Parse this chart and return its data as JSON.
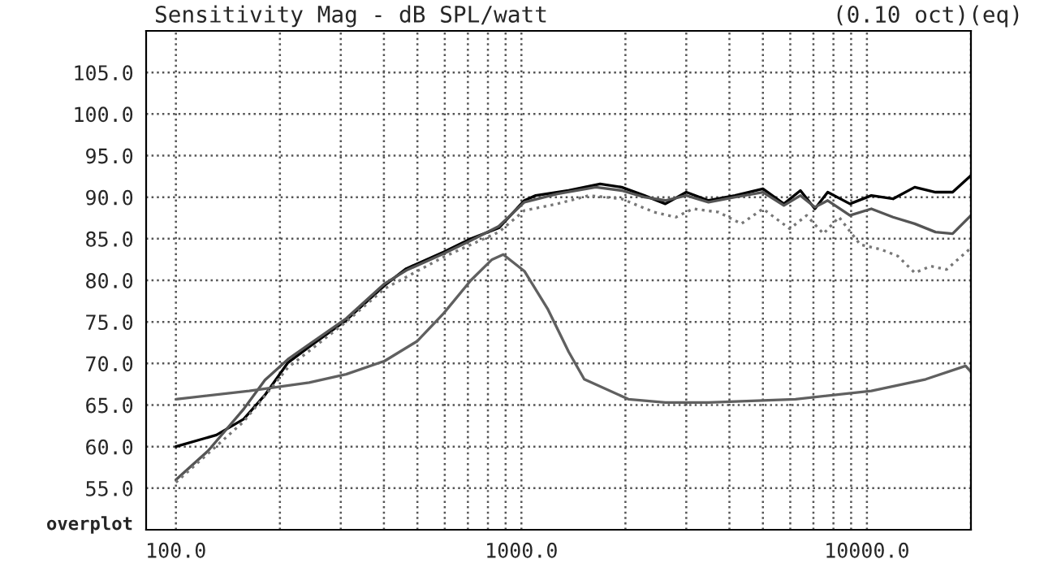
{
  "chart_data": {
    "type": "line",
    "title": "Sensitivity Mag - dB SPL/watt",
    "subtitle": "(0.10 oct)(eq)",
    "annotations": [
      "overplot"
    ],
    "log": "x",
    "grid": true,
    "legend": false,
    "marker": "none",
    "xlim": [
      82,
      20000
    ],
    "ylim": [
      50,
      110
    ],
    "xticks": [
      {
        "value": 100,
        "label": "100.0"
      },
      {
        "value": 200,
        "label": null
      },
      {
        "value": 300,
        "label": null
      },
      {
        "value": 400,
        "label": null
      },
      {
        "value": 500,
        "label": null
      },
      {
        "value": 600,
        "label": null
      },
      {
        "value": 700,
        "label": null
      },
      {
        "value": 800,
        "label": null
      },
      {
        "value": 900,
        "label": null
      },
      {
        "value": 1000,
        "label": "1000.0"
      },
      {
        "value": 2000,
        "label": null
      },
      {
        "value": 3000,
        "label": null
      },
      {
        "value": 4000,
        "label": null
      },
      {
        "value": 5000,
        "label": null
      },
      {
        "value": 6000,
        "label": null
      },
      {
        "value": 7000,
        "label": null
      },
      {
        "value": 8000,
        "label": null
      },
      {
        "value": 9000,
        "label": null
      },
      {
        "value": 10000,
        "label": "10000.0"
      },
      {
        "value": 20000,
        "label": null
      }
    ],
    "yticks": [
      {
        "value": 55,
        "label": "55.0"
      },
      {
        "value": 60,
        "label": "60.0"
      },
      {
        "value": 65,
        "label": "65.0"
      },
      {
        "value": 70,
        "label": "70.0"
      },
      {
        "value": 75,
        "label": "75.0"
      },
      {
        "value": 80,
        "label": "80.0"
      },
      {
        "value": 85,
        "label": "85.0"
      },
      {
        "value": 90,
        "label": "90.0"
      },
      {
        "value": 95,
        "label": "95.0"
      },
      {
        "value": 100,
        "label": "100.0"
      },
      {
        "value": 105,
        "label": "105.0"
      }
    ],
    "series": [
      {
        "color": "#000000",
        "line_style": "solid",
        "x": [
          100,
          131,
          157,
          181,
          211,
          243,
          311,
          402,
          464,
          595,
          714,
          860,
          1020,
          1100,
          1370,
          1690,
          1950,
          2270,
          2610,
          3000,
          3480,
          4150,
          5000,
          5750,
          6420,
          7070,
          7700,
          8930,
          10300,
          11900,
          13750,
          15800,
          17700,
          20000
        ],
        "values": [
          60,
          61.4,
          63.3,
          66.2,
          70.1,
          72,
          75.2,
          79.4,
          81.4,
          83.4,
          85,
          86.3,
          89.6,
          90.2,
          90.8,
          91.6,
          91.2,
          90.2,
          89.2,
          90.6,
          89.6,
          90.2,
          91,
          89.2,
          90.8,
          88.6,
          90.6,
          89.2,
          90.2,
          89.8,
          91.2,
          90.6,
          90.6,
          92.6
        ]
      },
      {
        "color": "#555555",
        "line_style": "solid",
        "x": [
          100,
          124,
          157,
          181,
          211,
          243,
          311,
          402,
          464,
          595,
          714,
          860,
          1020,
          1270,
          1640,
          1950,
          2270,
          2610,
          3000,
          3480,
          4150,
          5000,
          5750,
          6420,
          7070,
          7700,
          8930,
          10300,
          11900,
          13750,
          15800,
          17700,
          20000
        ],
        "values": [
          56,
          59.5,
          64.5,
          68,
          70.5,
          72.3,
          75.4,
          79.6,
          81.2,
          83.2,
          84.8,
          86.5,
          89.4,
          90.4,
          91.2,
          90.8,
          90,
          89.6,
          90.2,
          89.4,
          90,
          90.6,
          89,
          90.2,
          88.8,
          89.6,
          87.8,
          88.6,
          87.6,
          86.8,
          85.8,
          85.6,
          87.8
        ]
      },
      {
        "color": "#777777",
        "line_style": "dotted",
        "x": [
          100,
          157,
          211,
          311,
          402,
          595,
          860,
          1020,
          1270,
          1570,
          1950,
          2420,
          2800,
          3140,
          3720,
          4330,
          5000,
          5980,
          6690,
          7480,
          8300,
          9560,
          11000,
          12300,
          13750,
          15300,
          17000,
          20000
        ],
        "values": [
          55.7,
          63,
          69.5,
          75,
          79,
          82.8,
          85.8,
          88.4,
          89.2,
          90.2,
          89.8,
          88.2,
          87.6,
          88.6,
          88.2,
          86.8,
          88.6,
          86.2,
          87.8,
          85.6,
          87.6,
          84.3,
          83.7,
          82.9,
          80.9,
          81.7,
          81.3,
          83.9
        ]
      },
      {
        "color": "#606060",
        "line_style": "solid",
        "x": [
          100,
          163,
          243,
          311,
          402,
          500,
          595,
          714,
          822,
          886,
          1020,
          1190,
          1370,
          1520,
          2040,
          2610,
          3480,
          6210,
          10300,
          14800,
          19300,
          20000
        ],
        "values": [
          65.7,
          66.7,
          67.7,
          68.7,
          70.3,
          72.7,
          76,
          80,
          82.5,
          83.1,
          81.1,
          76.6,
          71.4,
          68.1,
          65.7,
          65.3,
          65.3,
          65.7,
          66.7,
          68.1,
          69.7,
          69
        ]
      }
    ]
  }
}
